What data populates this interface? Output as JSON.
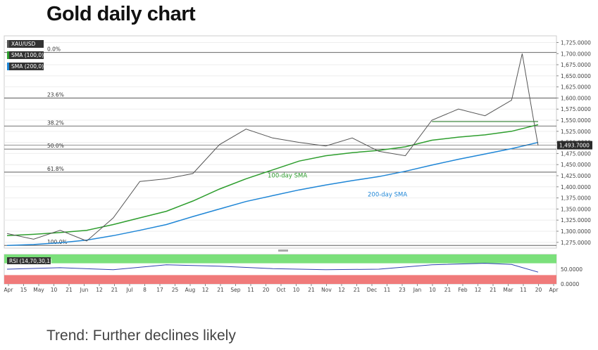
{
  "page": {
    "title": "Gold daily chart",
    "caption": "Trend: Further declines likely"
  },
  "chart_data": {
    "type": "line",
    "symbol": "XAU/USD",
    "legend": [
      {
        "label": "XAU/USD",
        "color": "#555555"
      },
      {
        "label": "SMA (100,0)",
        "color": "#2e9e2e"
      },
      {
        "label": "SMA (200,0)",
        "color": "#1f86d6"
      }
    ],
    "y_ticks": [
      "1,725.0000",
      "1,700.0000",
      "1,675.0000",
      "1,650.0000",
      "1,625.0000",
      "1,600.0000",
      "1,575.0000",
      "1,550.0000",
      "1,525.0000",
      "1,500.0000",
      "1,475.0000",
      "1,450.0000",
      "1,425.0000",
      "1,400.0000",
      "1,375.0000",
      "1,350.0000",
      "1,325.0000",
      "1,300.0000",
      "1,275.0000"
    ],
    "y_tick_values": [
      1725,
      1700,
      1675,
      1650,
      1625,
      1600,
      1575,
      1550,
      1525,
      1500,
      1475,
      1450,
      1425,
      1400,
      1375,
      1350,
      1325,
      1300,
      1275
    ],
    "ylim": [
      1262,
      1740
    ],
    "last_price": {
      "label": "1,493.7000",
      "value": 1493.7
    },
    "x_ticks": [
      "Apr",
      "15",
      "May",
      "10",
      "21",
      "Jun",
      "12",
      "21",
      "Jul",
      "8",
      "17",
      "25",
      "Aug",
      "12",
      "21",
      "Sep",
      "11",
      "20",
      "Oct",
      "10",
      "21",
      "Nov",
      "12",
      "21",
      "Dec",
      "11",
      "23",
      "Jan",
      "10",
      "21",
      "Feb",
      "12",
      "21",
      "Mar",
      "11",
      "20",
      "Apr"
    ],
    "fibonacci": [
      {
        "label": "0.0%",
        "value": 1703
      },
      {
        "label": "23.6%",
        "value": 1600
      },
      {
        "label": "38.2%",
        "value": 1537
      },
      {
        "label": "50.0%",
        "value": 1485
      },
      {
        "label": "61.8%",
        "value": 1433
      },
      {
        "label": "100.0%",
        "value": 1268
      }
    ],
    "series": [
      {
        "name": "100-day SMA",
        "color": "#2e9e2e",
        "x": [
          0,
          5,
          10,
          15,
          20,
          25,
          30,
          35,
          40,
          45,
          50,
          55,
          60,
          65,
          70,
          75,
          80,
          85,
          90,
          95,
          100
        ],
        "values": [
          1290,
          1293,
          1297,
          1302,
          1315,
          1330,
          1345,
          1368,
          1395,
          1418,
          1438,
          1458,
          1470,
          1477,
          1482,
          1490,
          1505,
          1512,
          1517,
          1525,
          1540
        ]
      },
      {
        "name": "200-day SMA",
        "color": "#1f86d6",
        "x": [
          0,
          5,
          10,
          15,
          20,
          25,
          30,
          35,
          40,
          45,
          50,
          55,
          60,
          65,
          70,
          75,
          80,
          85,
          90,
          95,
          100
        ],
        "values": [
          1268,
          1270,
          1274,
          1280,
          1290,
          1302,
          1315,
          1333,
          1350,
          1367,
          1380,
          1393,
          1404,
          1414,
          1423,
          1435,
          1449,
          1462,
          1474,
          1486,
          1500
        ]
      },
      {
        "name": "XAU/USD",
        "color": "#555555",
        "x": [
          0,
          5,
          10,
          15,
          20,
          25,
          30,
          35,
          40,
          45,
          50,
          55,
          60,
          65,
          70,
          75,
          80,
          85,
          90,
          95,
          97,
          99,
          100
        ],
        "values": [
          1295,
          1282,
          1302,
          1278,
          1330,
          1412,
          1418,
          1430,
          1495,
          1530,
          1510,
          1500,
          1492,
          1510,
          1480,
          1470,
          1550,
          1575,
          1560,
          1595,
          1700,
          1560,
          1493
        ]
      }
    ],
    "horizontal_line": {
      "from_x": 80,
      "to_x": 100,
      "value": 1547
    },
    "annotations": [
      {
        "text": "100-day SMA",
        "color": "#2e9e2e",
        "value": 1421
      },
      {
        "text": "200-day SMA",
        "color": "#1f86d6",
        "value": 1410
      }
    ],
    "rsi": {
      "label": "RSI (14,70,30,1)",
      "y_ticks": [
        "50.0000",
        "0.0000"
      ],
      "overbought": 70,
      "oversold": 30,
      "x": [
        0,
        10,
        20,
        30,
        40,
        50,
        60,
        70,
        80,
        90,
        95,
        100
      ],
      "values": [
        50,
        55,
        48,
        65,
        60,
        52,
        48,
        50,
        65,
        70,
        66,
        40
      ]
    }
  }
}
